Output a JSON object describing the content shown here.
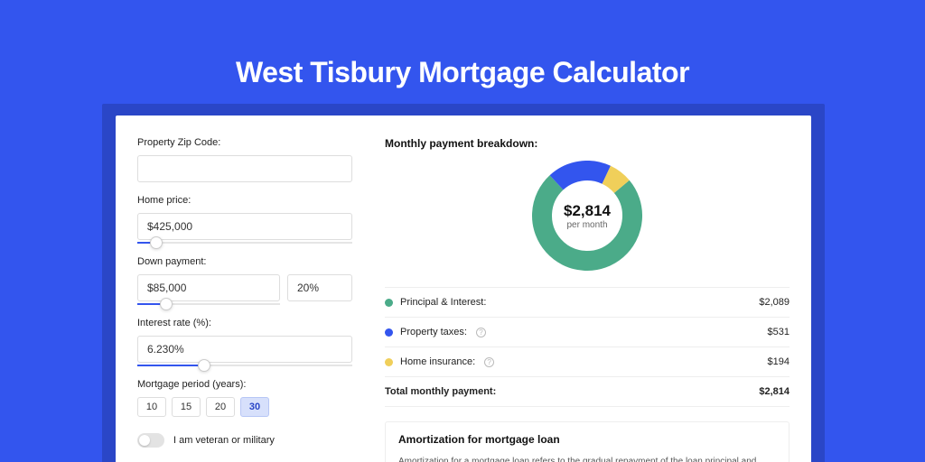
{
  "colors": {
    "page_bg": "#3355ee",
    "shadow_bg": "#2a46c7",
    "card_bg": "#ffffff",
    "title_color": "#ffffff",
    "slider_track": "#e5e5e5",
    "slider_fill": "#3355ee",
    "border": "#dddddd",
    "divider": "#eeeeee",
    "period_active_bg": "#d7e0fb",
    "period_active_border": "#b7c6f5"
  },
  "page_title": "West Tisbury Mortgage Calculator",
  "form": {
    "zip": {
      "label": "Property Zip Code:",
      "value": ""
    },
    "home_price": {
      "label": "Home price:",
      "value": "$425,000",
      "slider_pct": 9
    },
    "down_payment": {
      "label": "Down payment:",
      "amount": "$85,000",
      "pct": "20%",
      "slider_pct": 20
    },
    "interest_rate": {
      "label": "Interest rate (%):",
      "value": "6.230%",
      "slider_pct": 31
    },
    "period": {
      "label": "Mortgage period (years):",
      "options": [
        "10",
        "15",
        "20",
        "30"
      ],
      "selected": "30"
    },
    "veteran": {
      "label": "I am veteran or military",
      "on": false
    }
  },
  "breakdown": {
    "title": "Monthly payment breakdown:",
    "donut": {
      "amount": "$2,814",
      "sub": "per month",
      "slices": [
        {
          "key": "principal_interest",
          "value": 2089,
          "color": "#4bab89"
        },
        {
          "key": "property_taxes",
          "value": 531,
          "color": "#3355ee"
        },
        {
          "key": "home_insurance",
          "value": 194,
          "color": "#f0cf5a"
        }
      ],
      "stroke_width": 22,
      "size": 122,
      "start_angle_deg": -40
    },
    "items": [
      {
        "label": "Principal & Interest:",
        "value": "$2,089",
        "color": "#4bab89",
        "info": false
      },
      {
        "label": "Property taxes:",
        "value": "$531",
        "color": "#3355ee",
        "info": true
      },
      {
        "label": "Home insurance:",
        "value": "$194",
        "color": "#f0cf5a",
        "info": true
      }
    ],
    "total": {
      "label": "Total monthly payment:",
      "value": "$2,814"
    }
  },
  "amortization": {
    "title": "Amortization for mortgage loan",
    "text": "Amortization for a mortgage loan refers to the gradual repayment of the loan principal and interest over a specified"
  }
}
